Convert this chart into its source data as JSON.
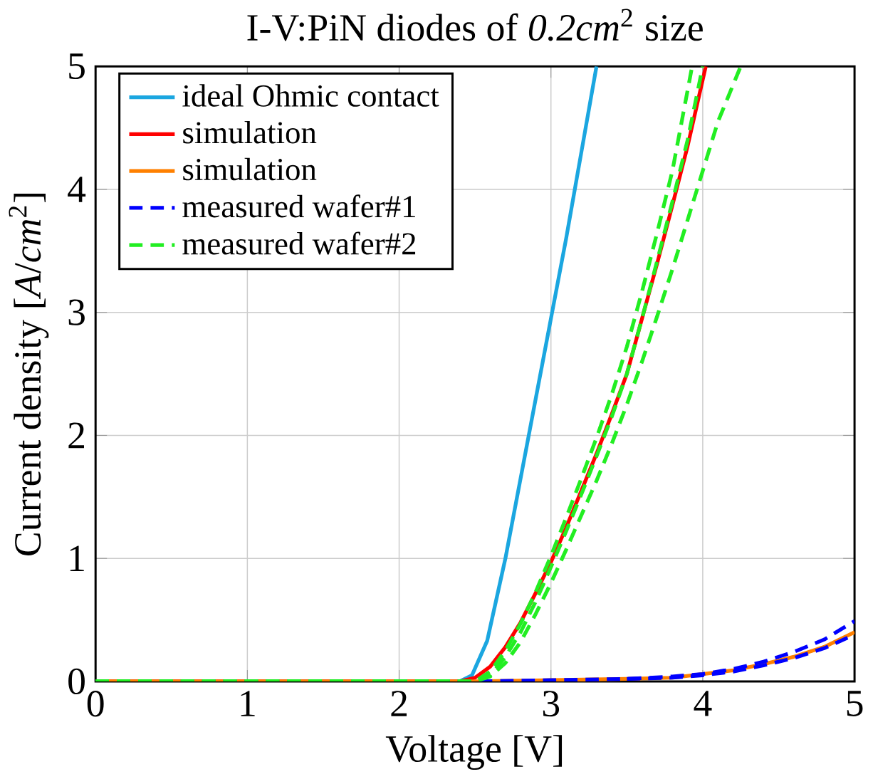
{
  "chart_data": {
    "type": "line",
    "title": "I-V:PiN diodes of *0.2cm*$^{2}$ size",
    "xlabel": "Voltage [V]",
    "ylabel": "Current density [*A*/*cm*$^{2}$]",
    "xlim": [
      0,
      5
    ],
    "ylim": [
      0,
      5
    ],
    "xticks": [
      0,
      1,
      2,
      3,
      4,
      5
    ],
    "yticks": [
      0,
      1,
      2,
      3,
      4,
      5
    ],
    "grid": true,
    "legend": "top left",
    "marker": "none",
    "series": [
      {
        "name": "ideal Ohmic contact",
        "color": "#1ba6e0",
        "line_style": "solid",
        "x": [
          0,
          2.4,
          2.48,
          2.58,
          2.7,
          2.8,
          2.9,
          3.0,
          3.1,
          3.2,
          3.3
        ],
        "values": [
          0,
          0,
          0.05,
          0.33,
          1.0,
          1.65,
          2.3,
          2.95,
          3.6,
          4.3,
          5
        ]
      },
      {
        "name": "simulation",
        "color": "#ff0000",
        "line_style": "solid",
        "x": [
          0,
          2.4,
          2.5,
          2.6,
          2.7,
          2.8,
          2.9,
          3.0,
          3.1,
          3.2,
          3.3,
          3.4,
          3.5,
          3.6,
          3.7,
          3.8,
          3.9,
          4.02
        ],
        "values": [
          0,
          0,
          0.03,
          0.12,
          0.28,
          0.48,
          0.72,
          0.97,
          1.25,
          1.55,
          1.85,
          2.17,
          2.5,
          2.95,
          3.4,
          3.87,
          4.35,
          5
        ]
      },
      {
        "name": "simulation",
        "color": "#ff8000",
        "line_style": "solid",
        "x": [
          0,
          2.5,
          3.0,
          3.5,
          3.8,
          4.0,
          4.2,
          4.4,
          4.6,
          4.8,
          5.0
        ],
        "values": [
          0,
          0,
          0.01,
          0.02,
          0.03,
          0.06,
          0.09,
          0.14,
          0.2,
          0.28,
          0.4
        ]
      },
      {
        "name": "measured wafer#1",
        "color": "#0000ff",
        "line_style": "dashed",
        "x": [
          0,
          2.5,
          3.0,
          3.5,
          3.8,
          4.0,
          4.2,
          4.4,
          4.5,
          4.6,
          4.8,
          5.0
        ],
        "values": [
          0,
          0,
          0.01,
          0.02,
          0.04,
          0.06,
          0.1,
          0.16,
          0.2,
          0.24,
          0.34,
          0.49
        ]
      },
      {
        "color": "#0000ff",
        "line_style": "dashed",
        "x": [
          3.5,
          3.8,
          4.0,
          4.2,
          4.4,
          4.6,
          4.8,
          5.0
        ],
        "values": [
          0.02,
          0.03,
          0.05,
          0.08,
          0.13,
          0.19,
          0.27,
          0.38
        ]
      },
      {
        "name": "measured wafer#2",
        "color": "#22ee22",
        "line_style": "dashed",
        "x": [
          0,
          2.5,
          2.6,
          2.7,
          2.8,
          2.9,
          3.0,
          3.1,
          3.2,
          3.3,
          3.4,
          3.5,
          3.6,
          3.7,
          3.8,
          3.9,
          4.0
        ],
        "values": [
          0,
          0,
          0.05,
          0.2,
          0.4,
          0.65,
          0.93,
          1.22,
          1.52,
          1.83,
          2.15,
          2.5,
          2.95,
          3.42,
          3.9,
          4.4,
          5
        ]
      },
      {
        "color": "#22ee22",
        "line_style": "dashed",
        "x": [
          0,
          2.5,
          2.6,
          2.7,
          2.8,
          2.9,
          3.0,
          3.1,
          3.2,
          3.3,
          3.4,
          3.5,
          3.6,
          3.7,
          3.8,
          3.93
        ],
        "values": [
          0,
          0,
          0.08,
          0.25,
          0.47,
          0.73,
          1.02,
          1.33,
          1.65,
          1.98,
          2.33,
          2.72,
          3.17,
          3.65,
          4.15,
          5
        ]
      },
      {
        "color": "#22ee22",
        "line_style": "dashed",
        "x": [
          0,
          2.5,
          2.6,
          2.7,
          2.8,
          2.9,
          3.0,
          3.1,
          3.2,
          3.3,
          3.4,
          3.5,
          3.6,
          3.7,
          3.8,
          3.9,
          4.0,
          4.1,
          4.25
        ],
        "values": [
          0,
          0,
          0.04,
          0.15,
          0.32,
          0.55,
          0.8,
          1.07,
          1.35,
          1.63,
          1.93,
          2.25,
          2.6,
          2.97,
          3.35,
          3.75,
          4.15,
          4.55,
          5
        ]
      }
    ]
  }
}
